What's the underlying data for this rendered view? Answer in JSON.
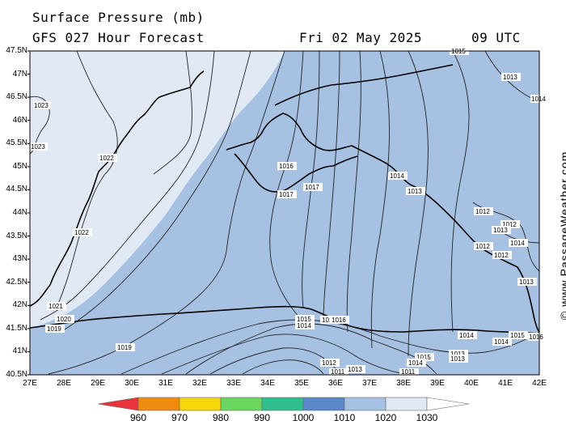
{
  "header": {
    "title": "Surface Pressure (mb)",
    "subtitle": "GFS 027 Hour Forecast",
    "date": "Fri 02 May 2025",
    "time": "09 UTC"
  },
  "map": {
    "lat_labels": [
      "47.5N",
      "47N",
      "46.5N",
      "46N",
      "45.5N",
      "45N",
      "44.5N",
      "44N",
      "43.5N",
      "43N",
      "42.5N",
      "42N",
      "41.5N",
      "41N",
      "40.5N"
    ],
    "lon_labels": [
      "27E",
      "28E",
      "29E",
      "30E",
      "31E",
      "32E",
      "33E",
      "34E",
      "35E",
      "36E",
      "37E",
      "38E",
      "39E",
      "40E",
      "41E",
      "42E"
    ],
    "isobar_labels": [
      "1015",
      "1013",
      "1014",
      "1023",
      "1023",
      "1022",
      "1022",
      "1021",
      "1020",
      "1019",
      "1019",
      "1016",
      "1017",
      "1017",
      "1014",
      "1013",
      "1012",
      "1012",
      "1013",
      "1014",
      "1012",
      "1012",
      "1013",
      "1015",
      "1014",
      "1016",
      "1016",
      "1012",
      "1013",
      "1011",
      "1011",
      "1015",
      "1014",
      "1013",
      "1013",
      "1014",
      "1015",
      "1014",
      "1016"
    ],
    "colors": {
      "land_low": "#a7c1e2",
      "land_high": "#e1e9f5",
      "sea": "#a7c1e2",
      "coast": "#000000"
    }
  },
  "colorbar": {
    "labels": [
      "960",
      "970",
      "980",
      "990",
      "1000",
      "1010",
      "1020",
      "1030"
    ],
    "colors": [
      "#e8343a",
      "#f08a10",
      "#f5d80a",
      "#6ad65e",
      "#2fbf8c",
      "#5b88c8",
      "#a7c1e2",
      "#e1e9f5",
      "#ffffff"
    ]
  },
  "credit": "© www.PassageWeather.com"
}
